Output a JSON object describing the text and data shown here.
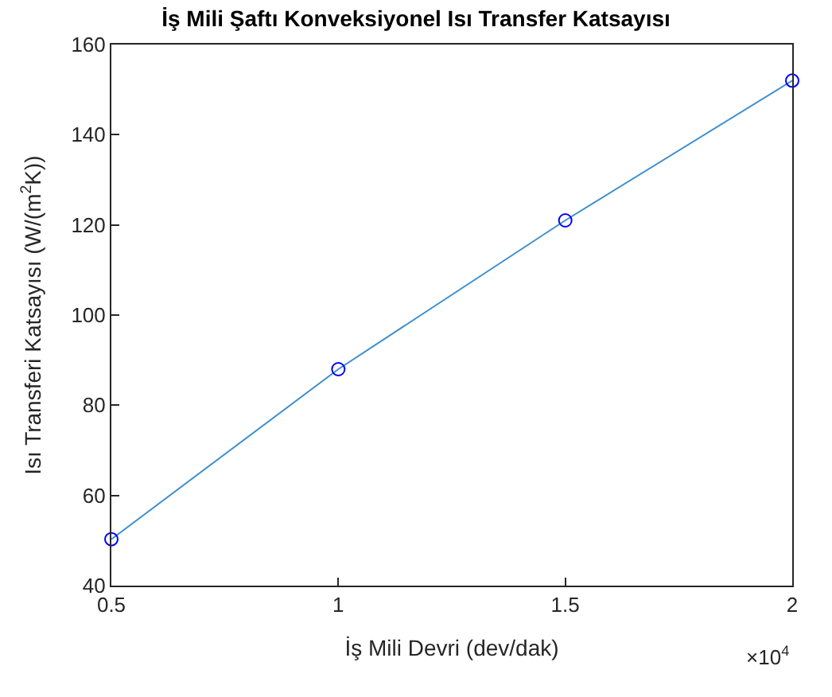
{
  "chart_data": {
    "type": "line",
    "title": "İş Mili Şaftı Konveksiyonel Isı Transfer Katsayısı",
    "xlabel": "İş Mili Devri (dev/dak)",
    "ylabel": "Isı Transferi Katsayısı (W/(m$^{2}$K))",
    "x": [
      0.5,
      1,
      1.5,
      2
    ],
    "series": [
      {
        "color": "#3c8fcf",
        "values": [
          50.3,
          88,
          121,
          152
        ]
      }
    ],
    "xlim": [
      0.5,
      2
    ],
    "xticks": [
      0.5,
      1,
      1.5,
      2
    ],
    "ylim": [
      40,
      160
    ],
    "yticks": [
      40,
      60,
      80,
      100,
      120,
      140,
      160
    ],
    "annotations": [
      "×10$^{4}$"
    ],
    "marker": "circle"
  }
}
